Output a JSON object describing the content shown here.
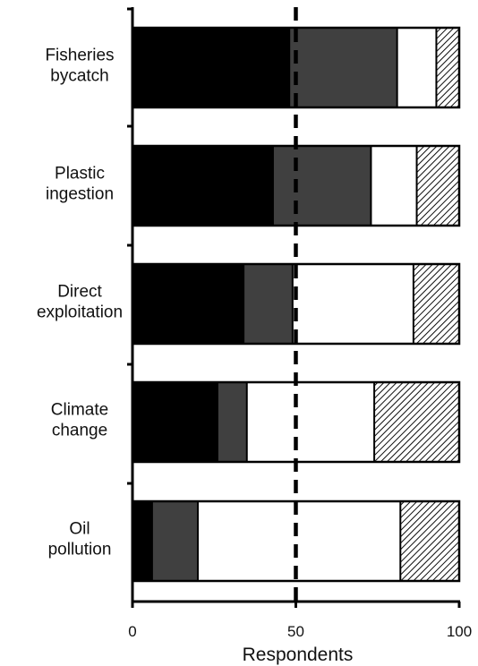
{
  "chart_data": {
    "type": "bar",
    "orientation": "horizontal",
    "stacked": true,
    "categories": [
      [
        "Fisheries",
        "bycatch"
      ],
      [
        "Plastic",
        "ingestion"
      ],
      [
        "Direct",
        "exploitation"
      ],
      [
        "Climate",
        "change"
      ],
      [
        "Oil",
        "pollution"
      ]
    ],
    "series": [
      {
        "values": [
          48,
          43,
          34,
          26,
          6
        ],
        "fill": "black",
        "color": "#000000"
      },
      {
        "values": [
          33,
          30,
          15,
          9,
          14
        ],
        "fill": "dark-gray",
        "color": "#404040"
      },
      {
        "values": [
          12,
          14,
          37,
          39,
          62
        ],
        "fill": "white",
        "color": "#ffffff"
      },
      {
        "values": [
          7,
          13,
          14,
          26,
          18
        ],
        "fill": "hatched",
        "color": "#ffffff"
      }
    ],
    "xlabel": "Respondents",
    "xlim": [
      0,
      100
    ],
    "xticks": [
      0,
      50,
      100
    ],
    "reference_line": {
      "x": 50,
      "style": "dashed"
    },
    "grid": false
  }
}
